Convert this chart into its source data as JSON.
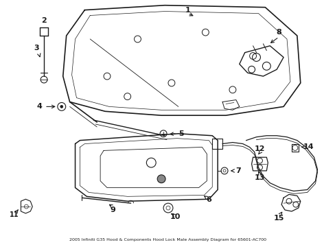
{
  "title": "2005 Infiniti G35 Hood & Components Hood Lock Male Assembly Diagram for 65601-AC700",
  "bg_color": "#ffffff",
  "line_color": "#1a1a1a",
  "label_color": "#000000",
  "fig_width": 4.89,
  "fig_height": 3.6,
  "dpi": 100
}
